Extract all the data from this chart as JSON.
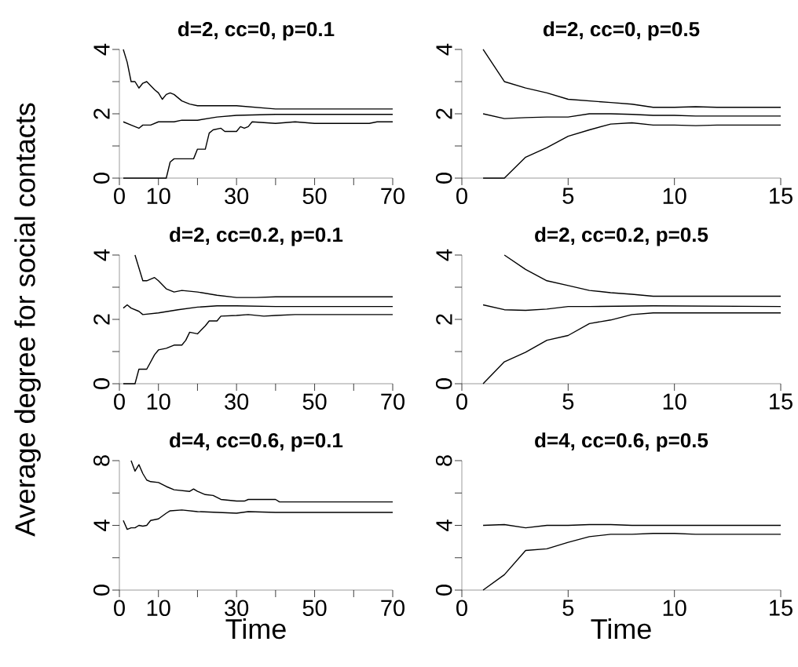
{
  "chart_data": [
    {
      "type": "line",
      "title": "d=2, cc=0, p=0.1",
      "xlim": [
        0,
        70
      ],
      "ylim": [
        0,
        4
      ],
      "xticks": [
        0,
        10,
        {
          "value": 20,
          "label": null
        },
        30,
        {
          "value": 40,
          "label": null
        },
        50,
        {
          "value": 60,
          "label": null
        },
        70
      ],
      "yticks": [
        0,
        {
          "value": 1,
          "label": null
        },
        2,
        {
          "value": 3,
          "label": null
        },
        4
      ],
      "series": [
        {
          "color": "#000000",
          "x": [
            1,
            2,
            3,
            4,
            5,
            6,
            7,
            9,
            10,
            11,
            12,
            13,
            14,
            16,
            18,
            20,
            30,
            40,
            45,
            70
          ],
          "values": [
            4.0,
            3.6,
            3.0,
            3.0,
            2.8,
            2.95,
            3.0,
            2.75,
            2.65,
            2.45,
            2.6,
            2.65,
            2.6,
            2.4,
            2.3,
            2.25,
            2.25,
            2.15,
            2.15,
            2.15
          ]
        },
        {
          "color": "#000000",
          "x": [
            1,
            3,
            5,
            6,
            8,
            10,
            14,
            16,
            20,
            25,
            30,
            40,
            70
          ],
          "values": [
            1.75,
            1.65,
            1.55,
            1.65,
            1.65,
            1.75,
            1.75,
            1.8,
            1.8,
            1.9,
            1.95,
            1.98,
            1.98
          ]
        },
        {
          "color": "#000000",
          "x": [
            1,
            12,
            13,
            14,
            19,
            20,
            22,
            23,
            24,
            26,
            27,
            30,
            31,
            32,
            33,
            34,
            40,
            45,
            50,
            60,
            64,
            66,
            70
          ],
          "values": [
            0,
            0,
            0.5,
            0.6,
            0.6,
            0.9,
            0.9,
            1.4,
            1.5,
            1.55,
            1.45,
            1.45,
            1.6,
            1.55,
            1.6,
            1.75,
            1.7,
            1.75,
            1.7,
            1.7,
            1.7,
            1.75,
            1.75
          ]
        }
      ]
    },
    {
      "type": "line",
      "title": "d=2, cc=0, p=0.5",
      "xlim": [
        0,
        15
      ],
      "ylim": [
        0,
        4
      ],
      "xticks": [
        0,
        5,
        10,
        15
      ],
      "yticks": [
        0,
        {
          "value": 1,
          "label": null
        },
        2,
        {
          "value": 3,
          "label": null
        },
        4
      ],
      "series": [
        {
          "color": "#000000",
          "x": [
            1,
            2,
            3,
            4,
            5,
            6,
            7,
            8,
            9,
            10,
            11,
            12,
            15
          ],
          "values": [
            4.0,
            3.0,
            2.8,
            2.65,
            2.45,
            2.4,
            2.35,
            2.3,
            2.2,
            2.2,
            2.22,
            2.2,
            2.2
          ]
        },
        {
          "color": "#000000",
          "x": [
            1,
            2,
            3,
            4,
            5,
            6,
            7,
            8,
            9,
            10,
            11,
            15
          ],
          "values": [
            2.0,
            1.85,
            1.88,
            1.9,
            1.9,
            2.0,
            2.0,
            1.98,
            1.95,
            1.95,
            1.93,
            1.93
          ]
        },
        {
          "color": "#000000",
          "x": [
            1,
            2,
            3,
            4,
            5,
            6,
            7,
            8,
            9,
            10,
            11,
            12,
            15
          ],
          "values": [
            0,
            0,
            0.65,
            0.95,
            1.3,
            1.5,
            1.68,
            1.72,
            1.65,
            1.65,
            1.63,
            1.65,
            1.65
          ]
        }
      ]
    },
    {
      "type": "line",
      "title": "d=2, cc=0.2, p=0.1",
      "ylabel": "Average degree for social contacts",
      "xlim": [
        0,
        70
      ],
      "ylim": [
        0,
        4
      ],
      "xticks": [
        0,
        10,
        {
          "value": 20,
          "label": null
        },
        30,
        {
          "value": 40,
          "label": null
        },
        50,
        {
          "value": 60,
          "label": null
        },
        70
      ],
      "yticks": [
        0,
        {
          "value": 1,
          "label": null
        },
        2,
        {
          "value": 3,
          "label": null
        },
        4
      ],
      "series": [
        {
          "color": "#000000",
          "x": [
            4,
            6,
            7,
            8,
            9,
            10,
            12,
            14,
            16,
            20,
            25,
            30,
            35,
            40,
            70
          ],
          "values": [
            4.0,
            3.2,
            3.2,
            3.25,
            3.3,
            3.2,
            2.95,
            2.85,
            2.9,
            2.85,
            2.75,
            2.68,
            2.68,
            2.7,
            2.7
          ]
        },
        {
          "color": "#000000",
          "x": [
            1,
            2,
            3,
            5,
            6,
            10,
            15,
            20,
            25,
            30,
            40,
            70
          ],
          "values": [
            2.35,
            2.45,
            2.35,
            2.25,
            2.15,
            2.2,
            2.3,
            2.38,
            2.42,
            2.42,
            2.4,
            2.4
          ]
        },
        {
          "color": "#000000",
          "x": [
            1,
            4,
            5,
            7,
            9,
            10,
            12,
            14,
            16,
            17,
            18,
            20,
            22,
            23,
            25,
            26,
            30,
            33,
            37,
            40,
            45,
            70
          ],
          "values": [
            0,
            0,
            0.45,
            0.45,
            0.9,
            1.05,
            1.1,
            1.2,
            1.2,
            1.35,
            1.6,
            1.55,
            1.8,
            1.95,
            1.95,
            2.1,
            2.12,
            2.15,
            2.1,
            2.12,
            2.15,
            2.15
          ]
        }
      ]
    },
    {
      "type": "line",
      "title": "d=2, cc=0.2, p=0.5",
      "xlim": [
        0,
        15
      ],
      "ylim": [
        0,
        4
      ],
      "xticks": [
        0,
        5,
        10,
        15
      ],
      "yticks": [
        0,
        {
          "value": 1,
          "label": null
        },
        2,
        {
          "value": 3,
          "label": null
        },
        4
      ],
      "series": [
        {
          "color": "#000000",
          "x": [
            2,
            3,
            4,
            5,
            6,
            7,
            8,
            9,
            15
          ],
          "values": [
            4.0,
            3.55,
            3.2,
            3.05,
            2.9,
            2.83,
            2.78,
            2.72,
            2.72
          ]
        },
        {
          "color": "#000000",
          "x": [
            1,
            2,
            3,
            4,
            5,
            6,
            9,
            15
          ],
          "values": [
            2.45,
            2.3,
            2.28,
            2.32,
            2.4,
            2.4,
            2.42,
            2.4
          ]
        },
        {
          "color": "#000000",
          "x": [
            1,
            2,
            3,
            4,
            5,
            6,
            7,
            8,
            9,
            15
          ],
          "values": [
            0,
            0.68,
            0.98,
            1.35,
            1.5,
            1.87,
            1.98,
            2.15,
            2.2,
            2.2
          ]
        }
      ]
    },
    {
      "type": "line",
      "title": "d=4, cc=0.6, p=0.1",
      "xlabel": "Time",
      "xlim": [
        0,
        70
      ],
      "ylim": [
        0,
        8
      ],
      "xticks": [
        0,
        10,
        {
          "value": 20,
          "label": null
        },
        30,
        {
          "value": 40,
          "label": null
        },
        50,
        {
          "value": 60,
          "label": null
        },
        70
      ],
      "yticks": [
        0,
        {
          "value": 2,
          "label": null
        },
        4,
        {
          "value": 6,
          "label": null
        },
        8
      ],
      "series": [
        {
          "color": "#000000",
          "x": [
            3,
            4,
            5,
            6,
            7,
            8,
            10,
            12,
            14,
            16,
            18,
            19,
            20,
            22,
            24,
            26,
            30,
            32,
            33,
            40,
            41,
            70
          ],
          "values": [
            8.0,
            7.35,
            7.75,
            7.2,
            6.8,
            6.7,
            6.65,
            6.4,
            6.2,
            6.15,
            6.1,
            6.25,
            6.1,
            5.9,
            5.85,
            5.6,
            5.5,
            5.5,
            5.6,
            5.6,
            5.45,
            5.45
          ]
        },
        {
          "color": "#000000",
          "x": [
            1,
            2,
            3,
            4,
            5,
            6,
            7,
            8,
            10,
            12,
            13,
            16,
            20,
            25,
            30,
            33,
            40,
            70
          ],
          "values": [
            4.3,
            3.75,
            3.85,
            3.85,
            4.0,
            3.95,
            4.0,
            4.3,
            4.4,
            4.75,
            4.9,
            4.95,
            4.85,
            4.8,
            4.75,
            4.85,
            4.8,
            4.8
          ]
        }
      ]
    },
    {
      "type": "line",
      "title": "d=4, cc=0.6, p=0.5",
      "xlabel": "Time",
      "xlim": [
        0,
        15
      ],
      "ylim": [
        0,
        8
      ],
      "xticks": [
        0,
        5,
        10,
        15
      ],
      "yticks": [
        0,
        {
          "value": 2,
          "label": null
        },
        4,
        {
          "value": 6,
          "label": null
        },
        8
      ],
      "series": [
        {
          "color": "#000000",
          "x": [
            1,
            2,
            3,
            4,
            5,
            6,
            7,
            8,
            15
          ],
          "values": [
            4.0,
            4.05,
            3.85,
            4.0,
            4.0,
            4.05,
            4.05,
            4.0,
            4.0
          ]
        },
        {
          "color": "#000000",
          "x": [
            1,
            2,
            3,
            4,
            5,
            6,
            7,
            8,
            9,
            10,
            11,
            15
          ],
          "values": [
            0,
            0.95,
            2.45,
            2.55,
            2.95,
            3.3,
            3.45,
            3.45,
            3.5,
            3.5,
            3.45,
            3.45
          ]
        }
      ]
    }
  ]
}
